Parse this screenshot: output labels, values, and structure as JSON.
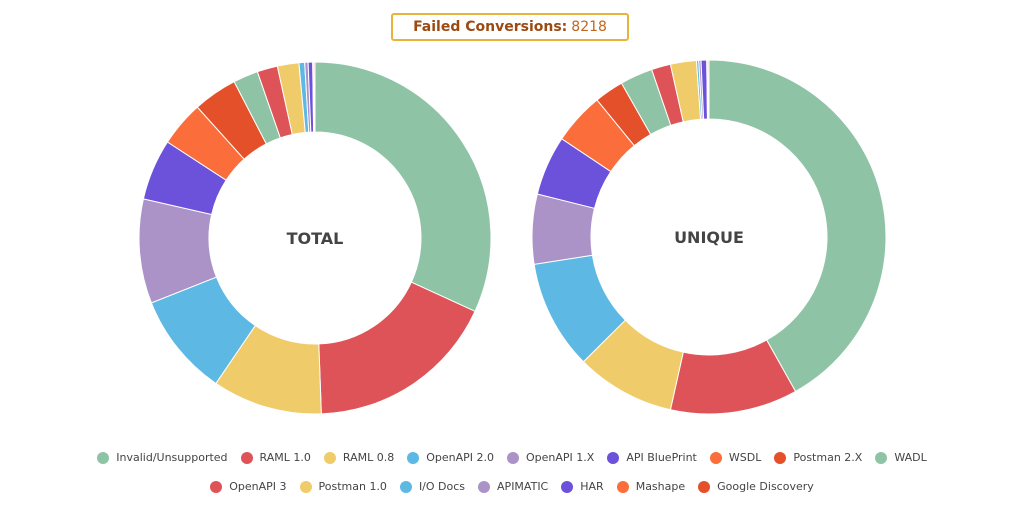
{
  "header": {
    "label": "Failed Conversions:",
    "value": "8218"
  },
  "chart_data": [
    {
      "type": "pie",
      "donut": true,
      "center_label": "TOTAL",
      "slices": [
        {
          "name": "Invalid/Unsupported",
          "value": 30.6,
          "color": "#8fc3a6"
        },
        {
          "name": "RAML 1.0",
          "value": 16.9,
          "color": "#de5358"
        },
        {
          "name": "RAML 0.8",
          "value": 9.7,
          "color": "#f0cb69"
        },
        {
          "name": "OpenAPI 2.0",
          "value": 9.1,
          "color": "#5eb8e4"
        },
        {
          "name": "OpenAPI 1.X",
          "value": 9.2,
          "color": "#ab93c8"
        },
        {
          "name": "API BluePrint",
          "value": 5.4,
          "color": "#6c51db"
        },
        {
          "name": "WSDL",
          "value": 4.0,
          "color": "#fb6d3a"
        },
        {
          "name": "Postman 2.X",
          "value": 3.9,
          "color": "#e4502a"
        },
        {
          "name": "WADL",
          "value": 2.2,
          "color": "#8fc3a6"
        },
        {
          "name": "OpenAPI 3",
          "value": 1.8,
          "color": "#de5358"
        },
        {
          "name": "Postman 1.0",
          "value": 1.9,
          "color": "#f0cb69"
        },
        {
          "name": "I/O Docs",
          "value": 0.5,
          "color": "#5eb8e4"
        },
        {
          "name": "APIMATIC",
          "value": 0.3,
          "color": "#ab93c8"
        },
        {
          "name": "HAR",
          "value": 0.4,
          "color": "#6c51db"
        },
        {
          "name": "Mashape",
          "value": 0.1,
          "color": "#fb6d3a"
        },
        {
          "name": "Google Discovery",
          "value": 0.1,
          "color": "#e4502a"
        }
      ]
    },
    {
      "type": "pie",
      "donut": true,
      "center_label": "UNIQUE",
      "slices": [
        {
          "name": "Invalid/Unsupported",
          "value": 40.7,
          "color": "#8fc3a6"
        },
        {
          "name": "RAML 1.0",
          "value": 11.3,
          "color": "#de5358"
        },
        {
          "name": "RAML 0.8",
          "value": 8.8,
          "color": "#f0cb69"
        },
        {
          "name": "OpenAPI 2.0",
          "value": 9.7,
          "color": "#5eb8e4"
        },
        {
          "name": "OpenAPI 1.X",
          "value": 6.2,
          "color": "#ab93c8"
        },
        {
          "name": "API BluePrint",
          "value": 5.3,
          "color": "#6c51db"
        },
        {
          "name": "WSDL",
          "value": 4.6,
          "color": "#fb6d3a"
        },
        {
          "name": "Postman 2.X",
          "value": 2.6,
          "color": "#e4502a"
        },
        {
          "name": "WADL",
          "value": 2.9,
          "color": "#8fc3a6"
        },
        {
          "name": "OpenAPI 3",
          "value": 1.7,
          "color": "#de5358"
        },
        {
          "name": "Postman 1.0",
          "value": 2.3,
          "color": "#f0cb69"
        },
        {
          "name": "I/O Docs",
          "value": 0.2,
          "color": "#5eb8e4"
        },
        {
          "name": "APIMATIC",
          "value": 0.2,
          "color": "#ab93c8"
        },
        {
          "name": "HAR",
          "value": 0.5,
          "color": "#6c51db"
        },
        {
          "name": "Mashape",
          "value": 0.1,
          "color": "#fb6d3a"
        },
        {
          "name": "Google Discovery",
          "value": 0.1,
          "color": "#e4502a"
        }
      ]
    }
  ],
  "legend": {
    "row1": [
      {
        "label": "Invalid/Unsupported",
        "color": "#8fc3a6"
      },
      {
        "label": "RAML 1.0",
        "color": "#de5358"
      },
      {
        "label": "RAML 0.8",
        "color": "#f0cb69"
      },
      {
        "label": "OpenAPI 2.0",
        "color": "#5eb8e4"
      },
      {
        "label": "OpenAPI 1.X",
        "color": "#ab93c8"
      },
      {
        "label": "API BluePrint",
        "color": "#6c51db"
      },
      {
        "label": "WSDL",
        "color": "#fb6d3a"
      },
      {
        "label": "Postman 2.X",
        "color": "#e4502a"
      },
      {
        "label": "WADL",
        "color": "#8fc3a6"
      }
    ],
    "row2": [
      {
        "label": "OpenAPI 3",
        "color": "#de5358"
      },
      {
        "label": "Postman 1.0",
        "color": "#f0cb69"
      },
      {
        "label": "I/O Docs",
        "color": "#5eb8e4"
      },
      {
        "label": "APIMATIC",
        "color": "#ab93c8"
      },
      {
        "label": "HAR",
        "color": "#6c51db"
      },
      {
        "label": "Mashape",
        "color": "#fb6d3a"
      },
      {
        "label": "Google Discovery",
        "color": "#e4502a"
      }
    ]
  }
}
